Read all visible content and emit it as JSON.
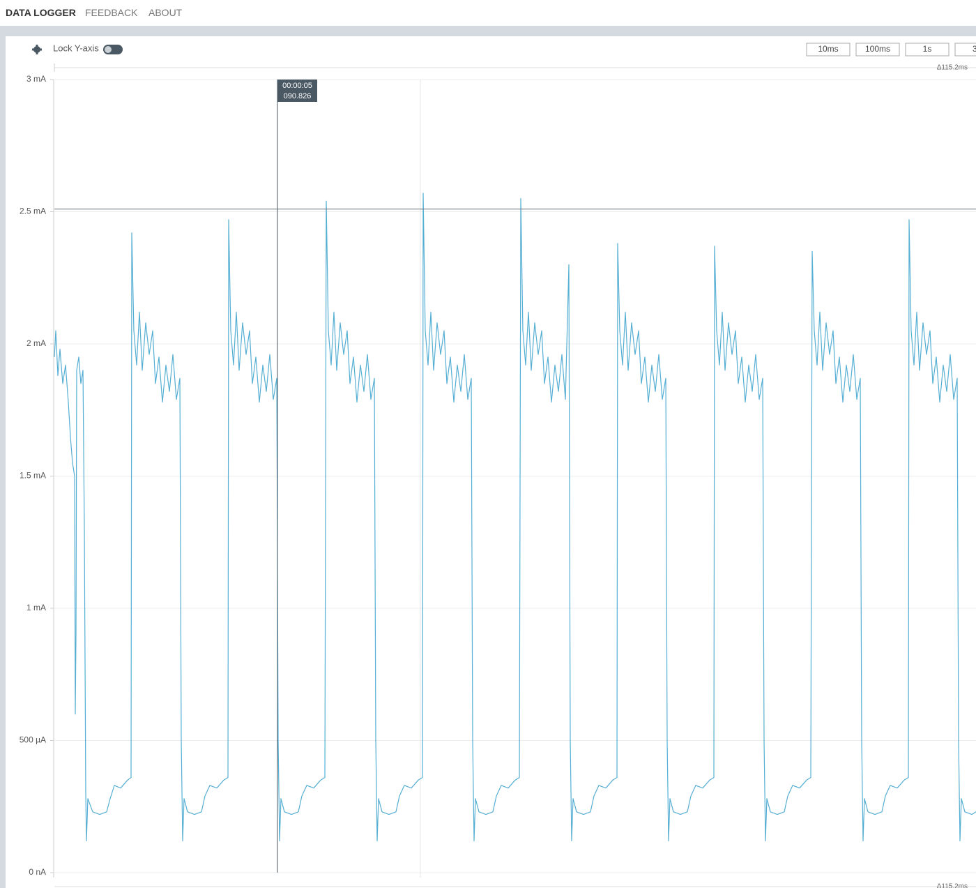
{
  "nav": [
    "DATA LOGGER",
    "FEEDBACK",
    "ABOUT"
  ],
  "toolbar": {
    "lock_label": "Lock Y-axis",
    "buttons": [
      "10ms",
      "100ms",
      "1s",
      "3"
    ]
  },
  "selection_label": "Δ115.2ms",
  "chart_data": {
    "type": "line",
    "color": "#55aed3",
    "grid": true,
    "xlim": [
      0,
      1322
    ],
    "ylim": [
      0,
      3
    ],
    "yticks": [
      {
        "value": 0,
        "label": "0 nA"
      },
      {
        "value": 0.5,
        "label": "500 µA"
      },
      {
        "value": 1,
        "label": "1 mA"
      },
      {
        "value": 1.5,
        "label": "1.5 mA"
      },
      {
        "value": 2,
        "label": "2 mA"
      },
      {
        "value": 2.5,
        "label": "2.5 mA"
      },
      {
        "value": 3,
        "label": "3 mA"
      }
    ],
    "cursor": {
      "x": 320,
      "label": [
        "00:00:05",
        "090.826"
      ]
    },
    "marker": 2.51,
    "x": [
      0,
      2,
      5,
      8,
      12,
      16,
      20,
      23,
      26,
      29,
      30,
      31,
      32,
      35,
      38,
      41,
      43,
      45,
      46,
      48,
      55,
      65,
      75,
      80,
      86,
      95,
      105,
      110,
      111,
      114,
      118,
      122,
      126,
      131,
      136,
      141,
      145,
      150,
      155,
      160,
      165,
      170,
      175,
      180,
      182,
      184,
      186,
      191,
      201,
      211,
      216,
      223,
      233,
      243,
      249,
      250,
      253,
      257,
      261,
      265,
      270,
      275,
      280,
      284,
      289,
      294,
      299,
      304,
      309,
      314,
      319,
      321,
      323,
      325,
      330,
      340,
      350,
      355,
      362,
      372,
      382,
      388,
      390,
      393,
      397,
      401,
      405,
      410,
      415,
      420,
      424,
      429,
      434,
      439,
      444,
      449,
      454,
      459,
      461,
      463,
      465,
      470,
      480,
      490,
      495,
      502,
      512,
      522,
      528,
      529,
      532,
      536,
      540,
      544,
      549,
      554,
      559,
      563,
      568,
      573,
      578,
      583,
      588,
      593,
      598,
      600,
      602,
      604,
      609,
      619,
      629,
      634,
      641,
      651,
      661,
      667,
      669,
      672,
      676,
      680,
      684,
      689,
      694,
      699,
      703,
      708,
      713,
      718,
      723,
      728,
      733,
      738,
      740,
      742,
      744,
      749,
      759,
      769,
      774,
      781,
      791,
      801,
      807,
      808,
      811,
      815,
      819,
      823,
      828,
      833,
      838,
      842,
      847,
      852,
      857,
      862,
      867,
      872,
      877,
      879,
      881,
      883,
      888,
      898,
      908,
      913,
      920,
      930,
      940,
      946,
      947,
      950,
      954,
      958,
      962,
      967,
      972,
      977,
      981,
      986,
      991,
      996,
      1001,
      1006,
      1011,
      1016,
      1018,
      1020,
      1022,
      1027,
      1037,
      1047,
      1052,
      1059,
      1069,
      1079,
      1085,
      1087,
      1090,
      1094,
      1098,
      1102,
      1107,
      1112,
      1117,
      1121,
      1126,
      1131,
      1136,
      1141,
      1146,
      1151,
      1156,
      1158,
      1160,
      1162,
      1167,
      1177,
      1187,
      1192,
      1199,
      1209,
      1219,
      1225,
      1226,
      1229,
      1233,
      1237,
      1241,
      1246,
      1251,
      1256,
      1260,
      1265,
      1270,
      1275,
      1280,
      1285,
      1290,
      1295,
      1297,
      1299,
      1301,
      1306,
      1316,
      1322
    ],
    "values": [
      1.95,
      2.05,
      1.88,
      1.98,
      1.85,
      1.92,
      1.78,
      1.65,
      1.55,
      1.5,
      0.6,
      0.9,
      1.9,
      1.95,
      1.85,
      1.9,
      1.3,
      0.3,
      0.12,
      0.28,
      0.23,
      0.22,
      0.23,
      0.28,
      0.33,
      0.32,
      0.35,
      0.36,
      2.42,
      2.05,
      1.92,
      2.12,
      1.9,
      2.08,
      1.96,
      2.05,
      1.85,
      1.95,
      1.78,
      1.92,
      1.82,
      1.96,
      1.79,
      1.87,
      0.5,
      0.12,
      0.28,
      0.23,
      0.22,
      0.23,
      0.29,
      0.33,
      0.32,
      0.35,
      0.36,
      2.47,
      2.05,
      1.92,
      2.12,
      1.9,
      2.08,
      1.96,
      2.05,
      1.85,
      1.95,
      1.78,
      1.92,
      1.82,
      1.96,
      1.79,
      1.87,
      0.5,
      0.12,
      0.28,
      0.23,
      0.22,
      0.23,
      0.29,
      0.33,
      0.32,
      0.35,
      0.36,
      2.54,
      2.05,
      1.92,
      2.12,
      1.9,
      2.08,
      1.96,
      2.05,
      1.85,
      1.95,
      1.78,
      1.92,
      1.82,
      1.96,
      1.79,
      1.87,
      0.5,
      0.12,
      0.28,
      0.23,
      0.22,
      0.23,
      0.29,
      0.33,
      0.32,
      0.35,
      0.36,
      2.57,
      2.05,
      1.92,
      2.12,
      1.9,
      2.08,
      1.96,
      2.05,
      1.85,
      1.95,
      1.78,
      1.92,
      1.82,
      1.96,
      1.79,
      1.87,
      0.5,
      0.12,
      0.28,
      0.23,
      0.22,
      0.23,
      0.29,
      0.33,
      0.32,
      0.35,
      0.36,
      2.55,
      2.05,
      1.92,
      2.12,
      1.9,
      2.08,
      1.96,
      2.05,
      1.85,
      1.95,
      1.78,
      1.92,
      1.82,
      1.96,
      1.79,
      2.3,
      0.5,
      0.12,
      0.28,
      0.23,
      0.22,
      0.23,
      0.29,
      0.33,
      0.32,
      0.35,
      0.36,
      2.38,
      2.05,
      1.92,
      2.12,
      1.9,
      2.08,
      1.96,
      2.05,
      1.85,
      1.95,
      1.78,
      1.92,
      1.82,
      1.96,
      1.79,
      1.87,
      0.5,
      0.12,
      0.28,
      0.23,
      0.22,
      0.23,
      0.29,
      0.33,
      0.32,
      0.35,
      0.36,
      2.37,
      2.05,
      1.92,
      2.12,
      1.9,
      2.08,
      1.96,
      2.05,
      1.85,
      1.95,
      1.78,
      1.92,
      1.82,
      1.96,
      1.79,
      1.87,
      0.5,
      0.12,
      0.28,
      0.23,
      0.22,
      0.23,
      0.29,
      0.33,
      0.32,
      0.35,
      0.36,
      2.35,
      2.05,
      1.92,
      2.12,
      1.9,
      2.08,
      1.96,
      2.05,
      1.85,
      1.95,
      1.78,
      1.92,
      1.82,
      1.96,
      1.79,
      1.87,
      0.5,
      0.12,
      0.28,
      0.23,
      0.22,
      0.23,
      0.29,
      0.33,
      0.32,
      0.35,
      0.36,
      2.47,
      2.05,
      1.92,
      2.12,
      1.9,
      2.08,
      1.96,
      2.05,
      1.85,
      1.95,
      1.78,
      1.92,
      1.82,
      1.96,
      1.79,
      1.87,
      0.5,
      0.12,
      0.28,
      0.23,
      0.22,
      0.23
    ]
  }
}
